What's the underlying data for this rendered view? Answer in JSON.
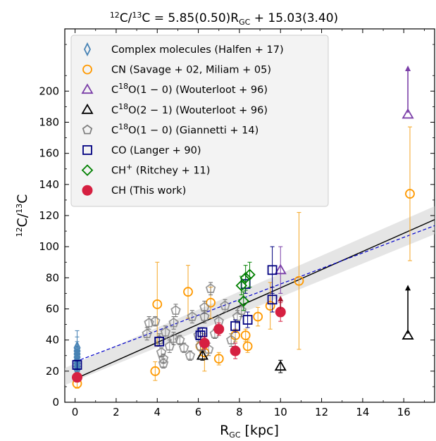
{
  "chart_data": {
    "type": "scatter",
    "title": {
      "pre": "12",
      "a": "C/",
      "sup": "13",
      "b": "C = 5.85(0.50)R",
      "sub": "GC",
      "c": " + 15.03(3.40)"
    },
    "xlabel": {
      "main": "R",
      "sub": "GC",
      "rest": " [kpc]"
    },
    "ylabel": {
      "pre": "12",
      "a": "C/",
      "sup": "13",
      "b": "C"
    },
    "xlim": [
      -0.5,
      17.5
    ],
    "ylim": [
      0,
      240
    ],
    "xticks": [
      "0",
      "2",
      "4",
      "6",
      "8",
      "10",
      "12",
      "14",
      "16"
    ],
    "yticks": [
      "0",
      "20",
      "40",
      "60",
      "80",
      "100",
      "120",
      "140",
      "160",
      "180",
      "200"
    ],
    "fit_line": {
      "slope": 5.85,
      "intercept": 15.03,
      "color": "#000000"
    },
    "fit_band": {
      "lower": [
        [
          -0.5,
          11
        ],
        [
          17.5,
          108
        ]
      ],
      "upper": [
        [
          -0.5,
          22
        ],
        [
          17.5,
          126
        ]
      ],
      "color": "#d3d3d3"
    },
    "dashed_line": {
      "slope": 5.0,
      "intercept": 26,
      "color": "#0000cc"
    },
    "legend": [
      {
        "label": "Complex molecules (Halfen + 17)",
        "marker": "thin_diamond",
        "color": "#4682b4"
      },
      {
        "label": "CN (Savage + 02, Miliam + 05)",
        "marker": "circle",
        "color": "#ff9900"
      },
      {
        "label_pre": "C",
        "label_sup": "18",
        "label_post": "O(1 − 0) (Wouterloot + 96)",
        "marker": "triangle",
        "color": "#7b3fa8"
      },
      {
        "label_pre": "C",
        "label_sup": "18",
        "label_post": "O(2 − 1) (Wouterloot + 96)",
        "marker": "triangle",
        "color": "#000000"
      },
      {
        "label_pre": "C",
        "label_sup": "18",
        "label_post": "O(1 − 0) (Giannetti + 14)",
        "marker": "pentagon",
        "color": "#808080"
      },
      {
        "label": "CO (Langer + 90)",
        "marker": "square",
        "color": "#000080"
      },
      {
        "label_pre": "CH",
        "label_sup": "+",
        "label_post": " (Ritchey + 11)",
        "marker": "diamond",
        "color": "#008000"
      },
      {
        "label": "CH (This work)",
        "marker": "filled_circle",
        "color": "#d62041"
      }
    ],
    "series": [
      {
        "name": "Complex molecules (Halfen + 17)",
        "marker": "thin_diamond",
        "color": "#4682b4",
        "points": [
          [
            0.1,
            35,
            11
          ],
          [
            0.1,
            33,
            9
          ],
          [
            0.1,
            31,
            8
          ],
          [
            0.1,
            29,
            7
          ],
          [
            0.1,
            27,
            6
          ],
          [
            0.1,
            25,
            6
          ],
          [
            0.1,
            23,
            5
          ],
          [
            0.1,
            21,
            5
          ]
        ]
      },
      {
        "name": "CN (Savage + 02, Miliam + 05)",
        "marker": "circle",
        "color": "#ff9900",
        "points": [
          [
            0.1,
            12,
            3
          ],
          [
            3.9,
            20,
            6
          ],
          [
            4.0,
            63,
            27
          ],
          [
            5.5,
            71,
            17
          ],
          [
            6.6,
            64,
            10
          ],
          [
            6.1,
            36,
            6
          ],
          [
            6.3,
            32,
            12
          ],
          [
            7.0,
            28,
            4
          ],
          [
            7.8,
            43,
            4
          ],
          [
            8.3,
            43,
            4
          ],
          [
            8.4,
            36,
            4
          ],
          [
            8.9,
            55,
            6
          ],
          [
            9.5,
            62,
            15
          ],
          [
            10.9,
            78,
            44
          ],
          [
            16.3,
            134,
            43
          ]
        ]
      },
      {
        "name": "C18O(1-0) (Wouterloot + 96)",
        "marker": "triangle",
        "color": "#7b3fa8",
        "points": [
          [
            10.0,
            85,
            15
          ],
          [
            16.2,
            185,
            0
          ]
        ],
        "lower_limit_arrows": [
          [
            16.2,
            186,
            216
          ]
        ]
      },
      {
        "name": "C18O(2-1) (Wouterloot + 96)",
        "marker": "triangle",
        "color": "#000000",
        "points": [
          [
            6.2,
            30,
            3
          ],
          [
            10.0,
            23,
            4
          ],
          [
            16.2,
            43,
            0
          ]
        ],
        "lower_limit_arrows": [
          [
            16.2,
            44,
            75
          ]
        ]
      },
      {
        "name": "C18O(1-0) (Giannetti + 14)",
        "marker": "pentagon",
        "color": "#808080",
        "points": [
          [
            3.5,
            44,
            4
          ],
          [
            3.6,
            51,
            4
          ],
          [
            3.9,
            52,
            3
          ],
          [
            4.1,
            40,
            4
          ],
          [
            4.2,
            32,
            3
          ],
          [
            4.3,
            28,
            3
          ],
          [
            4.3,
            25,
            3
          ],
          [
            4.4,
            45,
            4
          ],
          [
            4.6,
            36,
            4
          ],
          [
            4.8,
            41,
            4
          ],
          [
            4.8,
            51,
            4
          ],
          [
            4.9,
            59,
            4
          ],
          [
            5.1,
            40,
            3
          ],
          [
            5.3,
            35,
            3
          ],
          [
            5.6,
            30,
            3
          ],
          [
            5.7,
            55,
            4
          ],
          [
            6.0,
            43,
            4
          ],
          [
            6.1,
            36,
            3
          ],
          [
            6.3,
            55,
            4
          ],
          [
            6.3,
            61,
            4
          ],
          [
            6.5,
            34,
            4
          ],
          [
            6.6,
            73,
            4
          ],
          [
            6.8,
            44,
            3
          ],
          [
            7.0,
            52,
            4
          ],
          [
            7.3,
            62,
            4
          ],
          [
            7.6,
            40,
            4
          ],
          [
            7.9,
            55,
            4
          ],
          [
            8.1,
            59,
            4
          ]
        ]
      },
      {
        "name": "CO (Langer + 90)",
        "marker": "square",
        "color": "#000080",
        "points": [
          [
            0.1,
            24,
            3
          ],
          [
            4.1,
            39,
            3
          ],
          [
            6.1,
            43,
            3
          ],
          [
            6.2,
            45,
            3
          ],
          [
            7.8,
            49,
            4
          ],
          [
            8.3,
            76,
            6
          ],
          [
            8.4,
            53,
            5
          ],
          [
            9.6,
            66,
            8
          ],
          [
            9.6,
            85,
            15
          ]
        ]
      },
      {
        "name": "CH+ (Ritchey + 11)",
        "marker": "diamond",
        "color": "#008000",
        "points": [
          [
            8.2,
            65,
            6
          ],
          [
            8.1,
            75,
            6
          ],
          [
            8.3,
            80,
            8
          ],
          [
            8.5,
            82,
            8
          ]
        ]
      },
      {
        "name": "CH (This work)",
        "marker": "filled_circle",
        "color": "#d62041",
        "points": [
          [
            0.1,
            16,
            3
          ],
          [
            6.3,
            38,
            4
          ],
          [
            7.0,
            47,
            4
          ],
          [
            7.8,
            33,
            5
          ],
          [
            10.0,
            58,
            6
          ]
        ],
        "upward_arrow": [
          [
            10.0,
            60,
            68
          ]
        ]
      }
    ]
  }
}
